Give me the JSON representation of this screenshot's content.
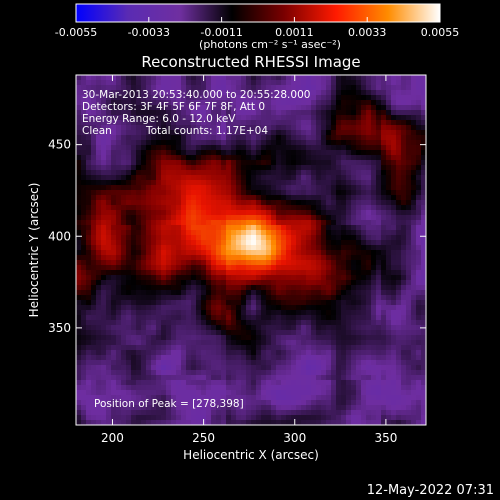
{
  "chart_data": {
    "type": "heatmap",
    "title": "Reconstructed RHESSI Image",
    "xlabel": "Heliocentric X (arcsec)",
    "ylabel": "Heliocentric Y (arcsec)",
    "xlim": [
      180,
      372
    ],
    "ylim": [
      297,
      488
    ],
    "x_ticks": [
      200,
      250,
      300,
      350
    ],
    "y_ticks": [
      350,
      400,
      450
    ],
    "colorbar": {
      "ticks": [
        "-0.0055",
        "-0.0033",
        "-0.0011",
        "0.0011",
        "0.0033",
        "0.0055"
      ],
      "range": [
        -0.0055,
        0.0055
      ],
      "units_label": "(photons cm⁻² s⁻¹ asec⁻²)",
      "colors": [
        "#0000ff",
        "#5a2bb3",
        "#6f2fa0",
        "#000000",
        "#7a0000",
        "#ff1a00",
        "#ff8c00",
        "#ffffff"
      ]
    },
    "annotations": {
      "time_range": "30-Mar-2013 20:53:40.000 to 20:55:28.000",
      "detectors": "Detectors: 3F 4F 5F 6F 7F 8F, Att 0",
      "energy_range": "Energy Range: 6.0 - 12.0 keV",
      "clean_label": "Clean",
      "total_counts": "Total counts: 1.17E+04",
      "peak_position": "Position of Peak = [278,398]"
    },
    "peak": {
      "x": 278,
      "y": 398
    },
    "timestamp": "12-May-2022 07:31"
  }
}
